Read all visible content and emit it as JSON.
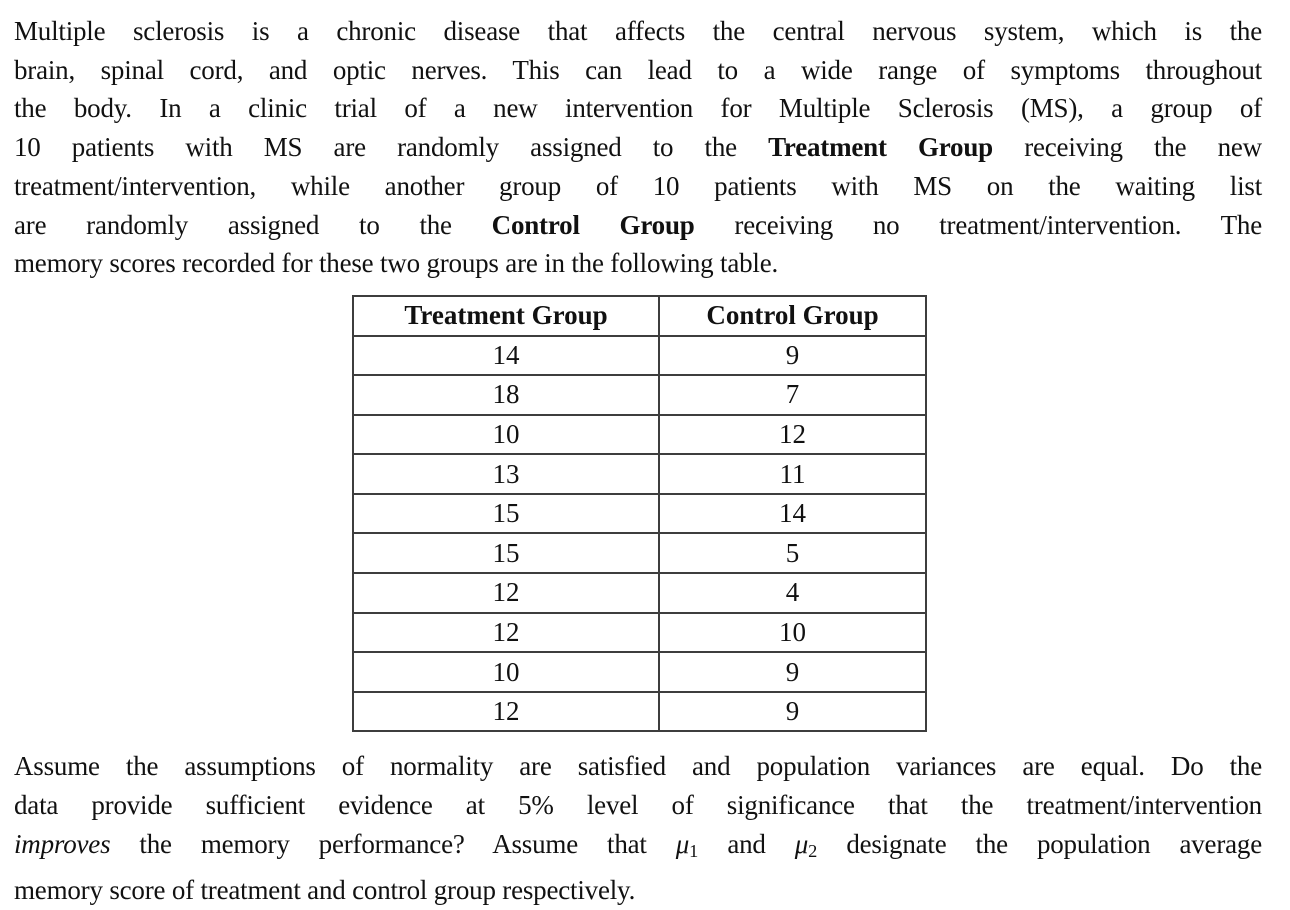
{
  "page": {
    "intro": {
      "lines": [
        [
          {
            "t": "Multiple sclerosis is a chronic disease that affects the central nervous system, which is the"
          }
        ],
        [
          {
            "t": "brain, spinal cord, and optic nerves. This can lead to a wide range of symptoms throughout"
          }
        ],
        [
          {
            "t": "the body. In a clinic trial of a new intervention for Multiple Sclerosis (MS), a group of"
          }
        ],
        [
          {
            "t": "10 patients with MS are randomly assigned to the "
          },
          {
            "t": "Treatment Group",
            "b": true
          },
          {
            "t": " receiving the new"
          }
        ],
        [
          {
            "t": "treatment/intervention, while another group of 10 patients with MS on the waiting list"
          }
        ],
        [
          {
            "t": "are randomly assigned to the "
          },
          {
            "t": "Control Group",
            "b": true
          },
          {
            "t": " receiving no treatment/intervention. The"
          }
        ],
        [
          {
            "t": "memory scores recorded for these two groups are in the following table."
          }
        ]
      ]
    },
    "table": {
      "headers": [
        "Treatment Group",
        "Control Group"
      ],
      "rows": [
        [
          "14",
          "9"
        ],
        [
          "18",
          "7"
        ],
        [
          "10",
          "12"
        ],
        [
          "13",
          "11"
        ],
        [
          "15",
          "14"
        ],
        [
          "15",
          "5"
        ],
        [
          "12",
          "4"
        ],
        [
          "12",
          "10"
        ],
        [
          "10",
          "9"
        ],
        [
          "12",
          "9"
        ]
      ]
    },
    "closing": {
      "lines": [
        [
          {
            "t": "Assume the assumptions of normality are satisfied and population variances are equal. Do the"
          }
        ],
        [
          {
            "t": "data provide sufficient evidence at 5% level of significance that the treatment/intervention"
          }
        ],
        [
          {
            "t": "improves",
            "i": true
          },
          {
            "t": " the memory performance? Assume that "
          },
          {
            "t": "μ",
            "i": true
          },
          {
            "t": "1",
            "sub": true
          },
          {
            "t": " and "
          },
          {
            "t": "μ",
            "i": true
          },
          {
            "t": "2",
            "sub": true
          },
          {
            "t": " designate the population average"
          }
        ],
        [
          {
            "t": "memory score of treatment and control group respectively."
          }
        ]
      ]
    }
  },
  "colors": {
    "text": "#111111",
    "table_border": "#3d3d3d",
    "background": "#ffffff"
  }
}
